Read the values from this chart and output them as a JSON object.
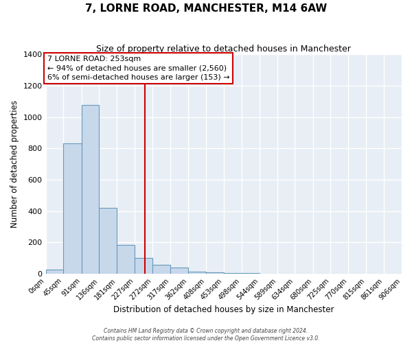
{
  "title": "7, LORNE ROAD, MANCHESTER, M14 6AW",
  "subtitle": "Size of property relative to detached houses in Manchester",
  "xlabel": "Distribution of detached houses by size in Manchester",
  "ylabel": "Number of detached properties",
  "bar_color": "#c8d8eb",
  "bar_edge_color": "#6699bb",
  "background_color": "#e8eef5",
  "fig_background_color": "#ffffff",
  "grid_color": "#ffffff",
  "property_line_x": 253,
  "property_line_color": "#cc0000",
  "bin_edges": [
    0,
    45,
    91,
    136,
    181,
    227,
    272,
    317,
    362,
    408,
    453,
    498,
    544,
    589,
    634,
    680,
    725,
    770,
    815,
    861,
    906
  ],
  "bin_labels": [
    "0sqm",
    "45sqm",
    "91sqm",
    "136sqm",
    "181sqm",
    "227sqm",
    "272sqm",
    "317sqm",
    "362sqm",
    "408sqm",
    "453sqm",
    "498sqm",
    "544sqm",
    "589sqm",
    "634sqm",
    "680sqm",
    "725sqm",
    "770sqm",
    "815sqm",
    "861sqm",
    "906sqm"
  ],
  "counts": [
    25,
    830,
    1075,
    420,
    185,
    103,
    58,
    38,
    15,
    8,
    5,
    3,
    0,
    0,
    0,
    0,
    0,
    0,
    0,
    0
  ],
  "ylim": [
    0,
    1400
  ],
  "yticks": [
    0,
    200,
    400,
    600,
    800,
    1000,
    1200,
    1400
  ],
  "annotation_line1": "7 LORNE ROAD: 253sqm",
  "annotation_line2": "← 94% of detached houses are smaller (2,560)",
  "annotation_line3": "6% of semi-detached houses are larger (153) →",
  "footer_line1": "Contains HM Land Registry data © Crown copyright and database right 2024.",
  "footer_line2": "Contains public sector information licensed under the Open Government Licence v3.0."
}
